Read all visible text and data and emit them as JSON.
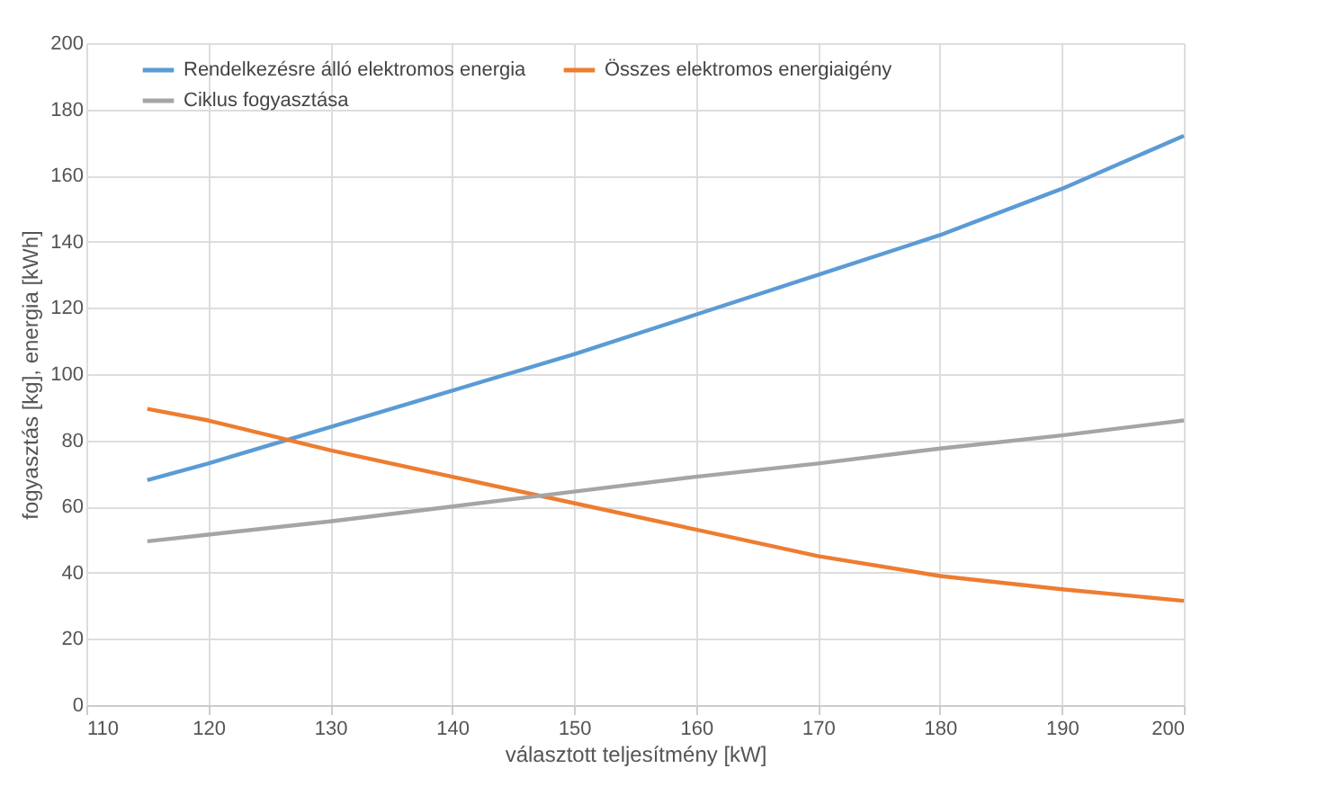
{
  "chart_data": {
    "type": "line",
    "xlabel": "választott teljesítmény [kW]",
    "ylabel": "fogyasztás [kg], energia [kWh]",
    "x": [
      115,
      120,
      130,
      140,
      150,
      160,
      170,
      180,
      190,
      200
    ],
    "series": [
      {
        "name": "Rendelkezésre álló elektromos energia",
        "color": "#5b9bd5",
        "values": [
          68,
          73,
          84,
          95,
          106,
          118,
          130,
          142,
          156,
          172
        ]
      },
      {
        "name": "Összes elektromos energiaigény",
        "color": "#ed7d31",
        "values": [
          89.5,
          86,
          77,
          69,
          61,
          53,
          45,
          39,
          35,
          31.5
        ]
      },
      {
        "name": "Ciklus fogyasztása",
        "color": "#a5a5a5",
        "values": [
          49.5,
          51.5,
          55.5,
          60,
          64.5,
          69,
          73,
          77.5,
          81.5,
          86
        ]
      }
    ],
    "xlim": [
      110,
      200
    ],
    "xticks": [
      110,
      120,
      130,
      140,
      150,
      160,
      170,
      180,
      190,
      200
    ],
    "ylim": [
      0,
      200
    ],
    "yticks": [
      0,
      20,
      40,
      60,
      80,
      100,
      120,
      140,
      160,
      180,
      200
    ],
    "grid": true,
    "legend": "top",
    "marker": "none",
    "line_style": "solid"
  }
}
